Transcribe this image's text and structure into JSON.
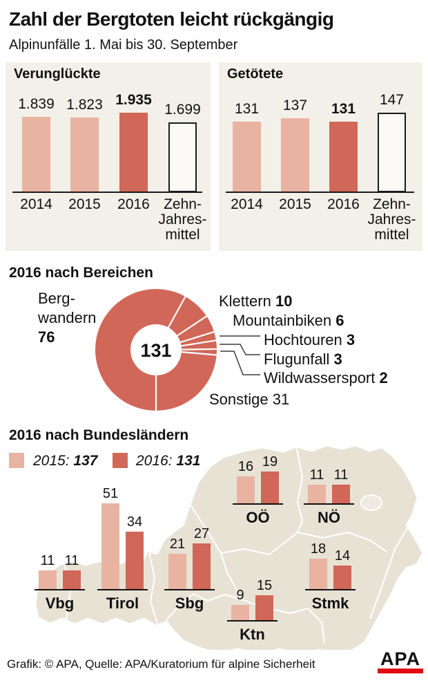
{
  "title": "Zahl der Bergtoten leicht rückgängig",
  "subtitle": "Alpinunfälle 1. Mai bis 30. September",
  "colors": {
    "bar_2015_light": "#e9b3a1",
    "bar_2016_dark": "#d16758",
    "panel_bg": "#f3f0e9",
    "outline_bar_fill": "#fbfaf7",
    "outline_bar_border": "#1a1a1a",
    "map_fill": "#e8e2d5",
    "map_border": "#ffffff",
    "vienna_fill": "#efeae1",
    "connector": "#3a3a3a",
    "apa_red": "#e30613",
    "text": "#111111"
  },
  "chart_data": [
    {
      "id": "verungglueckte",
      "type": "bar",
      "title": "Verunglückte",
      "categories": [
        "2014",
        "2015",
        "2016",
        [
          "Zehn-",
          "Jahres-",
          "mittel"
        ]
      ],
      "values": [
        1839,
        1823,
        1935,
        1699
      ],
      "value_labels": [
        "1.839",
        "1.823",
        "1.935",
        "1.699"
      ],
      "emphasis_index": 2,
      "outline_index": 3,
      "ylim": [
        0,
        1935
      ]
    },
    {
      "id": "getoetete",
      "type": "bar",
      "title": "Getötete",
      "categories": [
        "2014",
        "2015",
        "2016",
        [
          "Zehn-",
          "Jahres-",
          "mittel"
        ]
      ],
      "values": [
        131,
        137,
        131,
        147
      ],
      "value_labels": [
        "131",
        "137",
        "131",
        "147"
      ],
      "emphasis_index": 2,
      "outline_index": 3,
      "ylim": [
        0,
        147
      ]
    },
    {
      "id": "bereiche",
      "type": "donut",
      "title": "2016 nach Bereichen",
      "center_label": "131",
      "total": 131,
      "segments": [
        {
          "label": "Bergwandern",
          "display_lines": [
            "Berg-",
            "wandern"
          ],
          "value": 76
        },
        {
          "label": "Klettern",
          "value": 10
        },
        {
          "label": "Mountainbiken",
          "value": 6
        },
        {
          "label": "Hochtouren",
          "value": 3
        },
        {
          "label": "Flugunfall",
          "value": 3
        },
        {
          "label": "Wildwassersport",
          "value": 2
        },
        {
          "label": "Sonstige",
          "value": 31
        }
      ]
    },
    {
      "id": "bundeslaender",
      "type": "grouped_bar",
      "title": "2016 nach Bundesländern",
      "legend": [
        {
          "label": "2015:",
          "value": "137"
        },
        {
          "label": "2016:",
          "value": "131"
        }
      ],
      "categories": [
        "Vbg",
        "Tirol",
        "Sbg",
        "OÖ",
        "NÖ",
        "Ktn",
        "Stmk"
      ],
      "series": [
        {
          "name": "2015",
          "values": [
            11,
            51,
            21,
            16,
            11,
            9,
            18
          ]
        },
        {
          "name": "2016",
          "values": [
            11,
            34,
            27,
            19,
            11,
            15,
            14
          ]
        }
      ]
    }
  ],
  "footer": {
    "credit": "Grafik: © APA, Quelle: APA/Kuratorium für alpine Sicherheit",
    "logo_text": "APA"
  }
}
